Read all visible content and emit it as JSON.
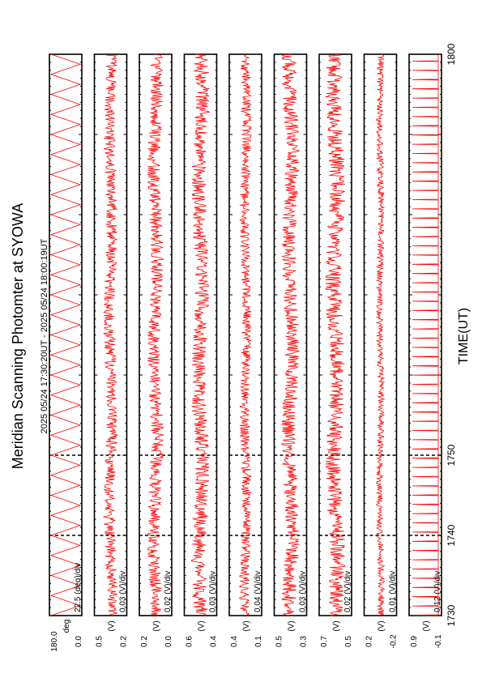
{
  "title": "Meridian Scanning Photomter at SYOWA",
  "time_range": "2025 05/24 17:30:20UT - 2025 05/24 18:00:19UT",
  "colors": {
    "trace": "#ff0000",
    "frame": "#000000"
  },
  "chart_data": {
    "type": "line",
    "orientation": "rotated-90",
    "xlabel": "TIME(UT)",
    "x_ticks": [
      "1730",
      "1740",
      "1750",
      "1800"
    ],
    "xlim": [
      1730,
      1800
    ],
    "panels": [
      {
        "scale_label": "22.5 (deg)/div",
        "ytick_labels": [
          "180.0",
          "0.0"
        ],
        "channel": "deg",
        "ylim": [
          0,
          180
        ],
        "amplitude": 0.9,
        "kind": "sweep"
      },
      {
        "scale_label": "0.03 (V)/div",
        "ytick_labels": [
          "0.5",
          "0.2"
        ],
        "channel": "(V)",
        "ylim": [
          0.2,
          0.5
        ],
        "amplitude": 0.35,
        "kind": "noise"
      },
      {
        "scale_label": "0.02 (V)/div",
        "ytick_labels": [
          "0.2",
          "0.0"
        ],
        "channel": "(V)",
        "ylim": [
          0.0,
          0.2
        ],
        "amplitude": 0.4,
        "kind": "noise"
      },
      {
        "scale_label": "0.03 (V)/div",
        "ytick_labels": [
          "0.6",
          "0.4"
        ],
        "channel": "(V)",
        "ylim": [
          0.4,
          0.6
        ],
        "amplitude": 0.45,
        "kind": "noise"
      },
      {
        "scale_label": "0.04 (V)/div",
        "ytick_labels": [
          "0.4",
          "0.1"
        ],
        "channel": "(V)",
        "ylim": [
          0.1,
          0.4
        ],
        "amplitude": 0.3,
        "kind": "noise"
      },
      {
        "scale_label": "0.03 (V)/div",
        "ytick_labels": [
          "0.5",
          "0.3"
        ],
        "channel": "(V)",
        "ylim": [
          0.3,
          0.5
        ],
        "amplitude": 0.45,
        "kind": "noise"
      },
      {
        "scale_label": "0.02 (V)/div",
        "ytick_labels": [
          "0.7",
          "0.5"
        ],
        "channel": "(V)",
        "ylim": [
          0.5,
          0.7
        ],
        "amplitude": 0.5,
        "kind": "noise"
      },
      {
        "scale_label": "0.01 (V)/div",
        "ytick_labels": [
          "0.2",
          "-0.2"
        ],
        "channel": "(V)",
        "ylim": [
          -0.2,
          0.2
        ],
        "amplitude": 0.2,
        "kind": "noise"
      },
      {
        "scale_label": "0.12 (V)/div",
        "ytick_labels": [
          "0.9",
          "-0.1"
        ],
        "channel": "(V)",
        "ylim": [
          -0.1,
          0.9
        ],
        "amplitude": 0.8,
        "kind": "spikes"
      }
    ]
  }
}
